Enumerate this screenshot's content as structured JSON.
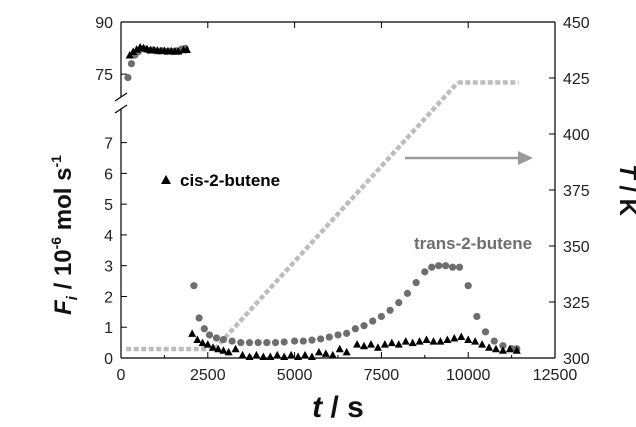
{
  "chart_data": {
    "type": "scatter",
    "xlabel_main": "t",
    "xlabel_unit": " / s",
    "ylabel_left": {
      "main": "F",
      "sub": "i",
      "mid": " / 10",
      "sup1": "-6",
      "unit": " mol s",
      "sup2": "-1"
    },
    "ylabel_right": {
      "main": "T",
      "unit": " / K"
    },
    "x_axis": {
      "range": [
        0,
        12500
      ],
      "ticks": [
        0,
        2500,
        5000,
        7500,
        10000,
        12500
      ],
      "tick_labels": [
        "0",
        "2500",
        "5000",
        "7500",
        "10000",
        "12500"
      ]
    },
    "y_left_lower": {
      "range": [
        0,
        7.8
      ],
      "ticks": [
        0,
        1,
        2,
        3,
        4,
        5,
        6,
        7
      ],
      "tick_labels": [
        "0",
        "1",
        "2",
        "3",
        "4",
        "5",
        "6",
        "7"
      ]
    },
    "y_left_upper": {
      "range": [
        71,
        90
      ],
      "ticks": [
        75,
        90
      ],
      "tick_labels": [
        "75",
        "90"
      ]
    },
    "y_right": {
      "range": [
        300,
        450
      ],
      "ticks": [
        300,
        325,
        350,
        375,
        400,
        425,
        450
      ],
      "tick_labels": [
        "300",
        "325",
        "350",
        "375",
        "400",
        "425",
        "450"
      ]
    },
    "axis_break": "left y-axis broken between 7.8 and 71",
    "annotation_arrow": "points right toward the T axis",
    "colors": {
      "cis": "#000000",
      "trans": "#6e6e6e",
      "temperature": "#bdbdbd",
      "arrow": "#9a9a9a"
    },
    "series": [
      {
        "name": "cis-2-butene",
        "marker": "triangle",
        "axis": "left",
        "points": [
          [
            250,
            80.5
          ],
          [
            350,
            81.5
          ],
          [
            450,
            82.2
          ],
          [
            550,
            82.8
          ],
          [
            650,
            82.6
          ],
          [
            750,
            82.3
          ],
          [
            850,
            82.0
          ],
          [
            950,
            82.0
          ],
          [
            1050,
            81.9
          ],
          [
            1150,
            81.8
          ],
          [
            1250,
            81.8
          ],
          [
            1350,
            81.7
          ],
          [
            1450,
            81.7
          ],
          [
            1550,
            81.6
          ],
          [
            1650,
            81.6
          ],
          [
            1800,
            82.0
          ],
          [
            1900,
            82.1
          ],
          [
            2050,
            0.8
          ],
          [
            2200,
            0.6
          ],
          [
            2350,
            0.5
          ],
          [
            2500,
            0.45
          ],
          [
            2650,
            0.35
          ],
          [
            2800,
            0.3
          ],
          [
            2950,
            0.25
          ],
          [
            3100,
            0.2
          ],
          [
            3300,
            0.3
          ],
          [
            3500,
            0.1
          ],
          [
            3700,
            0.05
          ],
          [
            3900,
            0.1
          ],
          [
            4100,
            0.05
          ],
          [
            4300,
            0.05
          ],
          [
            4500,
            0.1
          ],
          [
            4700,
            0.05
          ],
          [
            4900,
            0.1
          ],
          [
            5100,
            0.05
          ],
          [
            5300,
            0.1
          ],
          [
            5500,
            0.05
          ],
          [
            5700,
            0.2
          ],
          [
            5900,
            0.15
          ],
          [
            6100,
            0.1
          ],
          [
            6300,
            0.3
          ],
          [
            6500,
            0.2
          ],
          [
            6800,
            0.45
          ],
          [
            7000,
            0.4
          ],
          [
            7200,
            0.45
          ],
          [
            7400,
            0.35
          ],
          [
            7600,
            0.45
          ],
          [
            7800,
            0.5
          ],
          [
            8000,
            0.45
          ],
          [
            8200,
            0.55
          ],
          [
            8400,
            0.5
          ],
          [
            8600,
            0.55
          ],
          [
            8800,
            0.6
          ],
          [
            9000,
            0.55
          ],
          [
            9200,
            0.55
          ],
          [
            9400,
            0.6
          ],
          [
            9600,
            0.65
          ],
          [
            9800,
            0.7
          ],
          [
            10000,
            0.6
          ],
          [
            10200,
            0.55
          ],
          [
            10400,
            0.45
          ],
          [
            10600,
            0.35
          ],
          [
            10800,
            0.3
          ],
          [
            11000,
            0.25
          ],
          [
            11200,
            0.3
          ],
          [
            11400,
            0.25
          ]
        ]
      },
      {
        "name": "trans-2-butene",
        "marker": "circle",
        "axis": "left",
        "points": [
          [
            200,
            74.0
          ],
          [
            300,
            78.0
          ],
          [
            400,
            80.5
          ],
          [
            500,
            81.5
          ],
          [
            600,
            82.3
          ],
          [
            700,
            82.2
          ],
          [
            800,
            81.8
          ],
          [
            900,
            81.9
          ],
          [
            1000,
            81.7
          ],
          [
            1100,
            81.6
          ],
          [
            1200,
            81.7
          ],
          [
            1300,
            81.5
          ],
          [
            1400,
            81.6
          ],
          [
            1500,
            81.5
          ],
          [
            1600,
            81.7
          ],
          [
            1750,
            82.2
          ],
          [
            1850,
            82.4
          ],
          [
            2100,
            2.35
          ],
          [
            2250,
            1.3
          ],
          [
            2400,
            0.95
          ],
          [
            2550,
            0.75
          ],
          [
            2750,
            0.65
          ],
          [
            2950,
            0.6
          ],
          [
            3200,
            0.55
          ],
          [
            3450,
            0.5
          ],
          [
            3700,
            0.5
          ],
          [
            3950,
            0.5
          ],
          [
            4200,
            0.5
          ],
          [
            4450,
            0.5
          ],
          [
            4700,
            0.52
          ],
          [
            5000,
            0.55
          ],
          [
            5250,
            0.55
          ],
          [
            5500,
            0.58
          ],
          [
            5750,
            0.62
          ],
          [
            6000,
            0.68
          ],
          [
            6250,
            0.75
          ],
          [
            6500,
            0.8
          ],
          [
            6750,
            0.95
          ],
          [
            7000,
            1.05
          ],
          [
            7250,
            1.2
          ],
          [
            7500,
            1.35
          ],
          [
            7750,
            1.55
          ],
          [
            8000,
            1.8
          ],
          [
            8250,
            2.1
          ],
          [
            8500,
            2.45
          ],
          [
            8750,
            2.8
          ],
          [
            8950,
            2.95
          ],
          [
            9150,
            3.0
          ],
          [
            9350,
            3.0
          ],
          [
            9550,
            2.95
          ],
          [
            9750,
            2.95
          ],
          [
            10000,
            2.35
          ],
          [
            10250,
            1.35
          ],
          [
            10500,
            0.85
          ],
          [
            10750,
            0.55
          ],
          [
            11000,
            0.4
          ],
          [
            11250,
            0.3
          ],
          [
            11400,
            0.3
          ]
        ]
      },
      {
        "name": "T",
        "marker": "line-segment",
        "axis": "right",
        "segments": [
          [
            [
              150,
              304
            ],
            [
              2700,
              304
            ]
          ],
          [
            [
              2700,
              304
            ],
            [
              9700,
              423
            ]
          ],
          [
            [
              9700,
              423
            ],
            [
              11450,
              423
            ]
          ]
        ]
      }
    ],
    "labels": {
      "cis": "cis-2-butene",
      "trans": "trans-2-butene"
    }
  }
}
